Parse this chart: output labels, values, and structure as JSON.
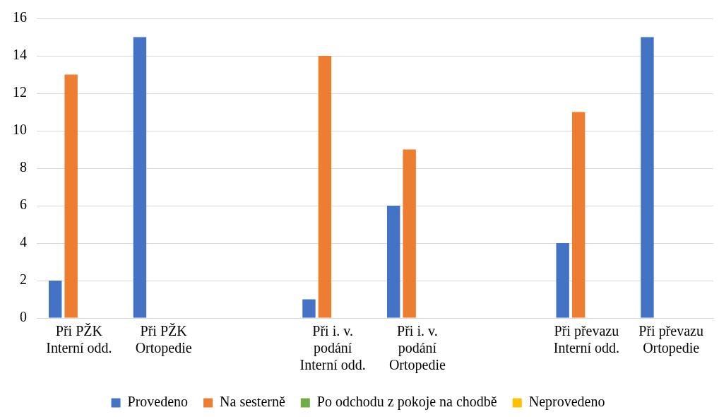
{
  "chart_data": {
    "type": "bar",
    "categories": [
      "Při PŽK Interní odd.",
      "Při PŽK Ortopedie",
      null,
      "Při i. v. podání Interní odd.",
      "Při i. v. podání Ortopedie",
      null,
      "Při převazu Interní odd.",
      "Při převazu Ortopedie"
    ],
    "series": [
      {
        "name": "Provedeno",
        "color": "#4472c4",
        "values": [
          2,
          15,
          null,
          1,
          6,
          null,
          4,
          15
        ]
      },
      {
        "name": "Na sesterně",
        "color": "#ed7d31",
        "values": [
          13,
          0,
          null,
          14,
          9,
          null,
          11,
          0
        ]
      },
      {
        "name": "Po odchodu z pokoje na chodbě",
        "color": "#70ad47",
        "values": [
          0,
          0,
          null,
          0,
          0,
          null,
          0,
          0
        ]
      },
      {
        "name": "Neprovedeno",
        "color": "#ffc000",
        "values": [
          0,
          0,
          null,
          0,
          0,
          null,
          0,
          0
        ]
      }
    ],
    "ylim": [
      0,
      16
    ],
    "yticks": [
      0,
      2,
      4,
      6,
      8,
      10,
      12,
      14,
      16
    ],
    "grid": "y",
    "legend": "bottom"
  }
}
